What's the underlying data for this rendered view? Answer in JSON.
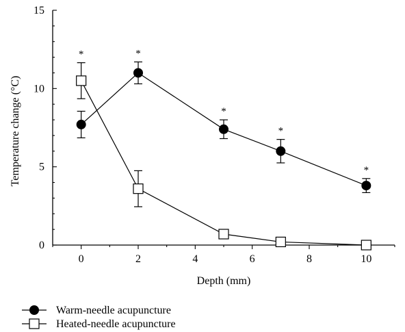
{
  "chart_data": {
    "type": "line",
    "xlabel": "Depth (mm)",
    "ylabel": "Temperature change (°C)",
    "xlim": [
      -1,
      11
    ],
    "ylim": [
      0,
      15
    ],
    "xticks": [
      0,
      2,
      4,
      6,
      8,
      10
    ],
    "yticks": [
      0,
      5,
      10,
      15
    ],
    "series": [
      {
        "name": "Warm-needle acupuncture",
        "marker": "filled-circle",
        "x": [
          0,
          2,
          5,
          7,
          10
        ],
        "y": [
          7.7,
          11.0,
          7.4,
          6.0,
          3.8
        ],
        "err": [
          0.85,
          0.7,
          0.6,
          0.75,
          0.45
        ],
        "significance": [
          "*",
          "*",
          "*",
          "*",
          "*"
        ]
      },
      {
        "name": "Heated-needle acupuncture",
        "marker": "open-square",
        "x": [
          0,
          2,
          5,
          7,
          10
        ],
        "y": [
          10.5,
          3.6,
          0.7,
          0.2,
          0.0
        ],
        "err": [
          1.15,
          1.15,
          0.0,
          0.0,
          0.0
        ],
        "significance": []
      }
    ],
    "legend_position": "bottom-left"
  }
}
